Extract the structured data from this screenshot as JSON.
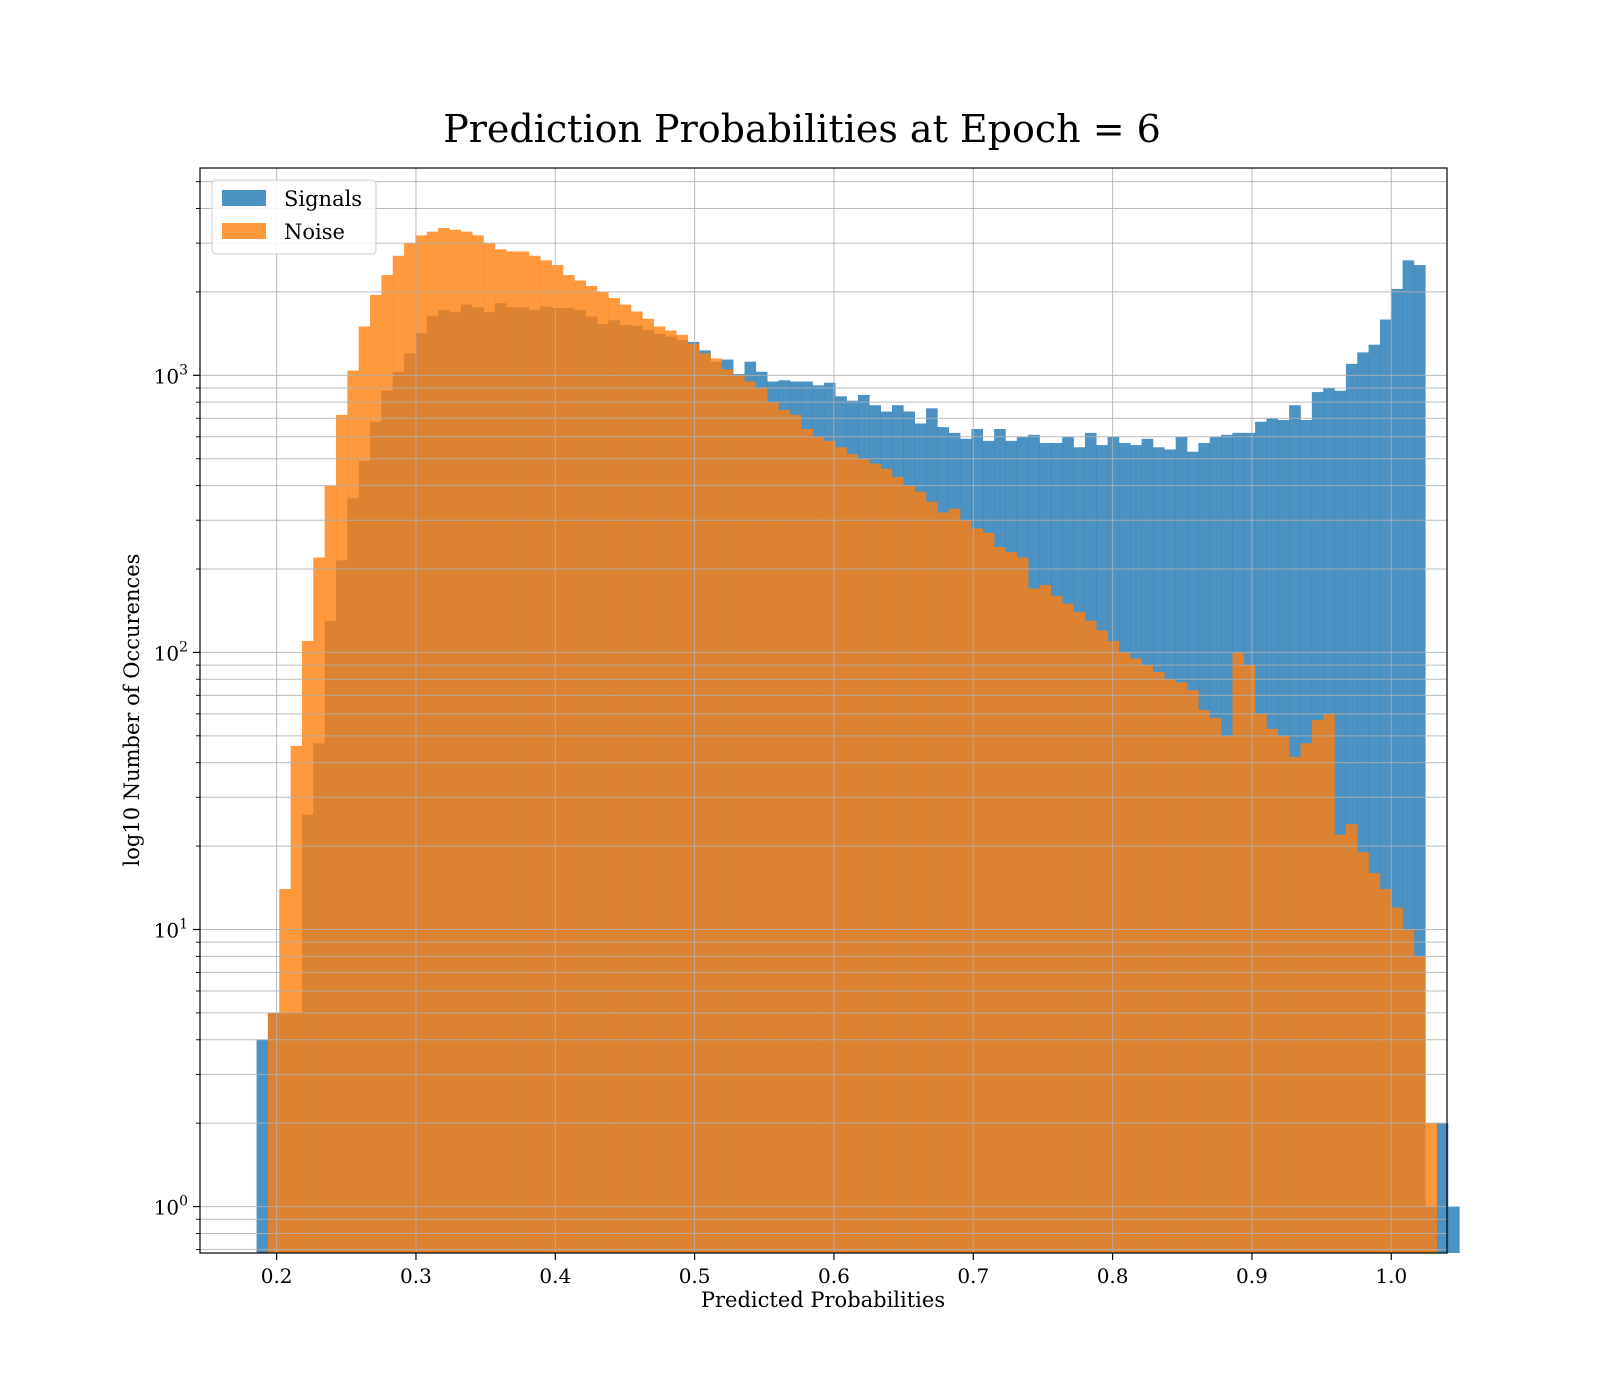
{
  "chart_data": {
    "type": "bar",
    "title": "Prediction Probabilities at Epoch = 6",
    "xlabel": "Predicted Probabilities",
    "ylabel": "log10 Number of Occurences",
    "xlim": [
      0.145,
      1.04
    ],
    "ylim": [
      0.68,
      5600
    ],
    "y_scale": "log",
    "x_ticks": [
      0.2,
      0.3,
      0.4,
      0.5,
      0.6,
      0.7,
      0.8,
      0.9,
      1.0
    ],
    "x_tick_labels": [
      "0.2",
      "0.3",
      "0.4",
      "0.5",
      "0.6",
      "0.7",
      "0.8",
      "0.9",
      "1.0"
    ],
    "y_ticks": [
      1,
      10,
      100,
      1000
    ],
    "y_tick_labels": [
      {
        "base": "10",
        "exp": "0"
      },
      {
        "base": "10",
        "exp": "1"
      },
      {
        "base": "10",
        "exp": "2"
      },
      {
        "base": "10",
        "exp": "3"
      }
    ],
    "grid": true,
    "legend_position": "top-left",
    "bin_start": 0.1856,
    "bin_width": 0.008144,
    "series": [
      {
        "name": "Signals",
        "color": "#1f77b4",
        "opacity": 0.8,
        "values": [
          4,
          5,
          5,
          5,
          26,
          47,
          130,
          215,
          360,
          490,
          680,
          880,
          1030,
          1200,
          1420,
          1640,
          1720,
          1690,
          1800,
          1760,
          1690,
          1820,
          1760,
          1760,
          1720,
          1770,
          1750,
          1750,
          1720,
          1630,
          1530,
          1580,
          1520,
          1510,
          1460,
          1410,
          1380,
          1340,
          1320,
          1230,
          1120,
          1140,
          1010,
          1120,
          1030,
          950,
          960,
          950,
          950,
          920,
          940,
          840,
          810,
          850,
          780,
          740,
          780,
          740,
          670,
          760,
          650,
          620,
          590,
          640,
          580,
          640,
          580,
          600,
          610,
          570,
          570,
          600,
          550,
          620,
          560,
          600,
          570,
          560,
          590,
          550,
          540,
          600,
          530,
          570,
          600,
          610,
          620,
          620,
          680,
          700,
          690,
          780,
          690,
          870,
          900,
          880,
          1100,
          1210,
          1290,
          1590,
          2050,
          2600,
          2500,
          1,
          2,
          1
        ]
      },
      {
        "name": "Noise",
        "color": "#ff7f0e",
        "opacity": 0.8,
        "values": [
          0,
          5,
          14,
          46,
          110,
          220,
          400,
          720,
          1040,
          1500,
          1950,
          2300,
          2700,
          3000,
          3200,
          3300,
          3400,
          3350,
          3300,
          3200,
          3000,
          2850,
          2800,
          2800,
          2700,
          2600,
          2500,
          2300,
          2200,
          2100,
          2000,
          1900,
          1800,
          1700,
          1600,
          1500,
          1450,
          1400,
          1300,
          1200,
          1150,
          1050,
          1000,
          950,
          900,
          800,
          750,
          720,
          640,
          600,
          580,
          550,
          520,
          500,
          480,
          460,
          430,
          400,
          380,
          350,
          320,
          330,
          300,
          280,
          270,
          240,
          230,
          220,
          170,
          175,
          160,
          150,
          140,
          130,
          120,
          110,
          100,
          95,
          90,
          85,
          80,
          78,
          73,
          62,
          58,
          50,
          100,
          90,
          60,
          53,
          50,
          42,
          47,
          57,
          60,
          22,
          24,
          19,
          16,
          14,
          12,
          10,
          8,
          2,
          0,
          0
        ]
      }
    ]
  }
}
